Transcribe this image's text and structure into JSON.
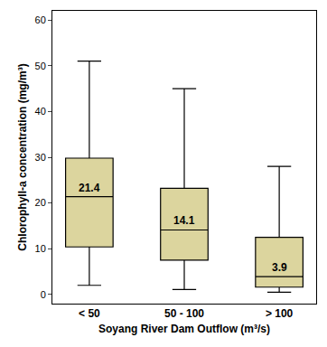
{
  "chart_data": {
    "type": "box",
    "xlabel": "Soyang River Dam Outflow (m³/s)",
    "ylabel": "Chlorophyll-a concentration (mg/m³)",
    "categories": [
      "< 50",
      "50 - 100",
      "> 100"
    ],
    "min": [
      2.0,
      1.1,
      0.5
    ],
    "q1": [
      10.4,
      7.5,
      1.6
    ],
    "median": [
      21.4,
      14.1,
      3.9
    ],
    "q3": [
      29.8,
      23.2,
      12.5
    ],
    "max": [
      51.0,
      45.0,
      28.0
    ],
    "color": "#dcd59e",
    "ylim": [
      -2,
      62
    ],
    "yticks": [
      0,
      10,
      20,
      30,
      40,
      50,
      60
    ],
    "grid": false,
    "data_labels": true
  }
}
